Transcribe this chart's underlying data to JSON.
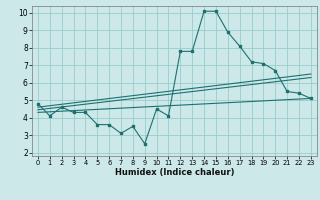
{
  "xlabel": "Humidex (Indice chaleur)",
  "background_color": "#cce8e8",
  "grid_color": "#99cccc",
  "line_color": "#1e7070",
  "xlim": [
    -0.5,
    23.5
  ],
  "ylim": [
    1.8,
    10.4
  ],
  "xticks": [
    0,
    1,
    2,
    3,
    4,
    5,
    6,
    7,
    8,
    9,
    10,
    11,
    12,
    13,
    14,
    15,
    16,
    17,
    18,
    19,
    20,
    21,
    22,
    23
  ],
  "yticks": [
    2,
    3,
    4,
    5,
    6,
    7,
    8,
    9,
    10
  ],
  "line1_x": [
    0,
    1,
    2,
    3,
    4,
    5,
    6,
    7,
    8,
    9,
    10,
    11,
    12,
    13,
    14,
    15,
    16,
    17,
    18,
    19,
    20,
    21,
    22,
    23
  ],
  "line1_y": [
    4.8,
    4.1,
    4.6,
    4.3,
    4.3,
    3.6,
    3.6,
    3.1,
    3.5,
    2.5,
    4.5,
    4.1,
    7.8,
    7.8,
    10.1,
    10.1,
    8.9,
    8.1,
    7.2,
    7.1,
    6.7,
    5.5,
    5.4,
    5.1
  ],
  "trend1_x": [
    0,
    23
  ],
  "trend1_y": [
    4.6,
    6.5
  ],
  "trend2_x": [
    0,
    23
  ],
  "trend2_y": [
    4.45,
    6.3
  ],
  "trend3_x": [
    0,
    23
  ],
  "trend3_y": [
    4.3,
    5.1
  ],
  "xlabel_fontsize": 6.0,
  "tick_fontsize": 4.8,
  "ytick_fontsize": 5.5
}
